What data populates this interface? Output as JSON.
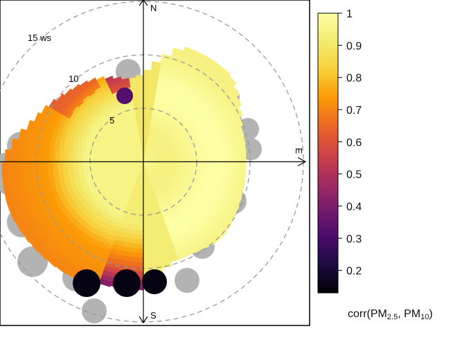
{
  "chart_data": {
    "type": "heatmap",
    "title": "",
    "directions": {
      "north": "N",
      "east": "E",
      "south": "S"
    },
    "radial_labels": [
      "5",
      "10",
      "15 ws"
    ],
    "radial_values": [
      5,
      10,
      15
    ],
    "radial_unit": "ws",
    "colorbar": {
      "title_parts": {
        "prefix": "corr(PM",
        "sub1": "2.5",
        "mid": ", PM",
        "sub2": "10",
        "suffix": ")"
      },
      "range": [
        0.13,
        1.0
      ],
      "ticks": [
        "1",
        "0.9",
        "0.8",
        "0.7",
        "0.6",
        "0.5",
        "0.4",
        "0.3",
        "0.2"
      ],
      "tick_values": [
        1,
        0.9,
        0.8,
        0.7,
        0.6,
        0.5,
        0.4,
        0.3,
        0.2
      ],
      "colormap": "inferno"
    },
    "missing_color": "#b3b3b3",
    "grid": true,
    "legend_placement": "right"
  }
}
